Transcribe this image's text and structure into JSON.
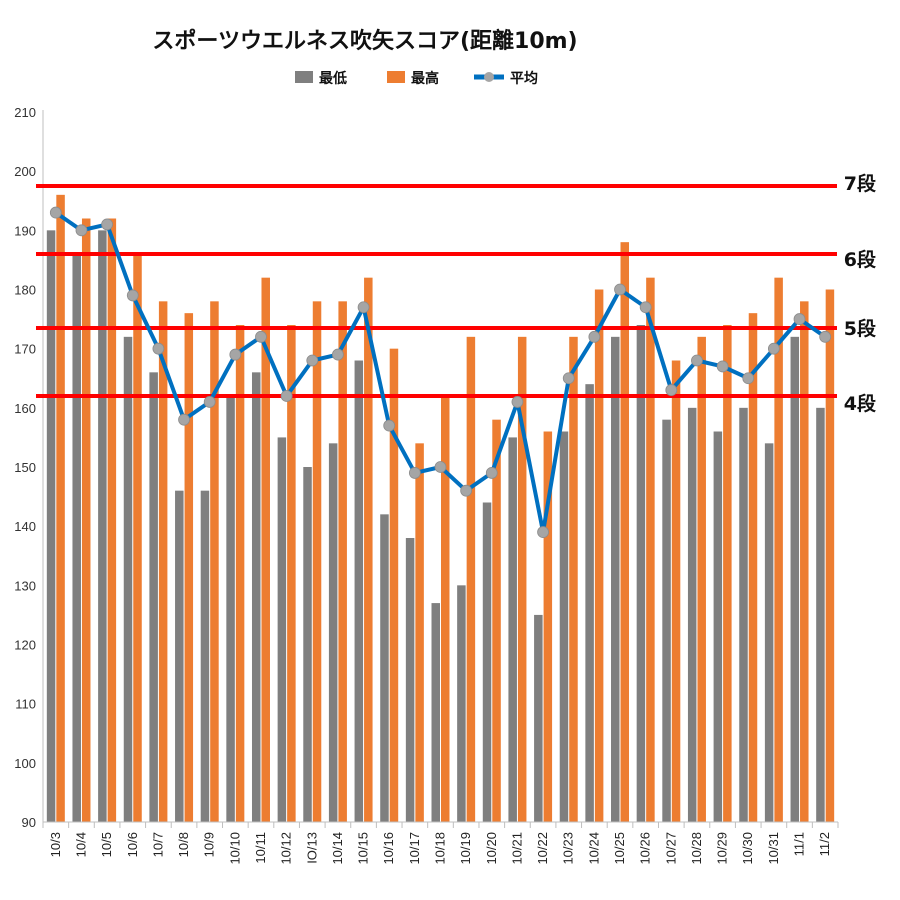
{
  "chart_data": {
    "type": "bar",
    "title": "スポーツウエルネス吹矢スコア(距離10m)",
    "categories": [
      "10/3",
      "10/4",
      "10/5",
      "10/6",
      "10/7",
      "10/8",
      "10/9",
      "10/10",
      "10/11",
      "10/12",
      "IO/13",
      "10/14",
      "10/15",
      "10/16",
      "10/17",
      "10/18",
      "10/19",
      "10/20",
      "10/21",
      "10/22",
      "10/23",
      "10/24",
      "10/25",
      "10/26",
      "10/27",
      "10/28",
      "10/29",
      "10/30",
      "10/31",
      "11/1",
      "11/2"
    ],
    "series": [
      {
        "name": "最低",
        "kind": "bar",
        "color": "#7f7f7f",
        "values": [
          190,
          186,
          190,
          172,
          166,
          146,
          146,
          162,
          166,
          155,
          150,
          154,
          168,
          142,
          138,
          127,
          130,
          144,
          155,
          125,
          156,
          164,
          172,
          174,
          158,
          160,
          156,
          160,
          154,
          172,
          160
        ]
      },
      {
        "name": "最高",
        "kind": "bar",
        "color": "#ed7d31",
        "values": [
          196,
          192,
          192,
          186,
          178,
          176,
          178,
          174,
          182,
          174,
          178,
          178,
          182,
          170,
          154,
          162,
          172,
          158,
          172,
          156,
          172,
          180,
          188,
          182,
          168,
          172,
          174,
          176,
          182,
          178,
          180
        ]
      },
      {
        "name": "平均",
        "kind": "line",
        "color": "#0070c0",
        "marker_color": "#a5a5a5",
        "values": [
          193,
          190,
          191,
          179,
          170,
          158,
          161,
          169,
          172,
          162,
          168,
          169,
          177,
          157,
          149,
          150,
          146,
          149,
          161,
          139,
          165,
          172,
          180,
          177,
          163,
          168,
          167,
          165,
          170,
          175,
          172
        ]
      }
    ],
    "ylim": [
      90,
      210
    ],
    "yticks": [
      90,
      100,
      110,
      120,
      130,
      140,
      150,
      160,
      170,
      180,
      190,
      200,
      210
    ],
    "grid": false,
    "legend_position": "top",
    "reference_lines": [
      {
        "label": "7段",
        "value": 197.5,
        "color": "#ff0000"
      },
      {
        "label": "6段",
        "value": 186,
        "color": "#ff0000"
      },
      {
        "label": "5段",
        "value": 173.5,
        "color": "#ff0000"
      },
      {
        "label": "4段",
        "value": 162,
        "color": "#ff0000"
      }
    ]
  }
}
